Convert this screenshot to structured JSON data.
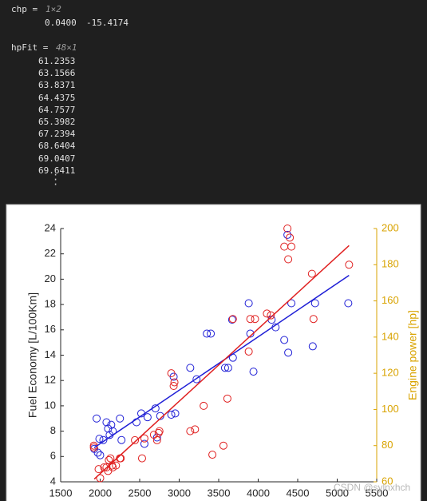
{
  "console": {
    "blocks": [
      {
        "label": "chp =",
        "size": "1×2",
        "values": [
          "0.0400",
          "-15.4174"
        ]
      },
      {
        "label": "hpFit =",
        "size": "48×1",
        "values": [
          "61.2353",
          "63.1566",
          "63.8371",
          "64.4375",
          "64.7577",
          "65.3982",
          "67.2394",
          "68.6404",
          "69.0407",
          "69.6411"
        ]
      }
    ]
  },
  "chart_data": {
    "type": "scatter",
    "ylabel": "Fuel Economy [L/100Km]",
    "y2label": "Engine power [hp]",
    "xlim": [
      1500,
      5500
    ],
    "xticks": [
      1500,
      2000,
      2500,
      3000,
      3500,
      4000,
      4500,
      5000,
      5500
    ],
    "ylim": [
      4,
      24
    ],
    "yticks": [
      4,
      6,
      8,
      10,
      12,
      14,
      16,
      18,
      20,
      22,
      24
    ],
    "y2lim": [
      60,
      200
    ],
    "y2ticks": [
      60,
      80,
      100,
      120,
      140,
      160,
      180,
      200
    ],
    "y2color": "#d9a300",
    "series": [
      {
        "color": "#1f1fd6",
        "marker": "circle",
        "x": [
          1955,
          1925,
          1970,
          1990,
          2000,
          2040,
          2080,
          2100,
          2120,
          2140,
          2160,
          2250,
          2270,
          2460,
          2520,
          2560,
          2600,
          2700,
          2720,
          2760,
          2900,
          2930,
          2950,
          3140,
          3220,
          3350,
          3400,
          3580,
          3620,
          3670,
          3680,
          3880,
          3900,
          3940,
          4170,
          4220,
          4330,
          4370,
          4380,
          4420,
          4690,
          4720,
          5140
        ],
        "values": [
          9.0,
          6.6,
          6.3,
          7.4,
          6.1,
          7.3,
          8.7,
          8.2,
          7.7,
          8.5,
          8.0,
          9.0,
          7.3,
          8.7,
          9.4,
          7.0,
          9.1,
          9.8,
          7.5,
          9.2,
          9.3,
          12.3,
          9.4,
          13.0,
          12.1,
          15.7,
          15.7,
          13.0,
          13.0,
          16.8,
          13.8,
          18.1,
          15.7,
          12.7,
          16.8,
          16.2,
          15.2,
          23.5,
          14.2,
          18.1,
          14.7,
          18.1,
          18.1
        ]
      },
      {
        "color": "#e02020",
        "marker": "circle",
        "axis": "y2",
        "x": [
          1920,
          1920,
          1980,
          2000,
          2050,
          2080,
          2100,
          2110,
          2130,
          2150,
          2160,
          2200,
          2250,
          2260,
          2440,
          2530,
          2560,
          2680,
          2720,
          2740,
          2750,
          2900,
          2930,
          2940,
          3140,
          3200,
          3310,
          3420,
          3560,
          3610,
          3680,
          3880,
          3900,
          3960,
          4110,
          4160,
          4330,
          4370,
          4380,
          4400,
          4420,
          4680,
          4700,
          5150
        ],
        "values": [
          80,
          79,
          67,
          62,
          68,
          68,
          66,
          72,
          73,
          69,
          68,
          69,
          73,
          73,
          83,
          73,
          84,
          86,
          83,
          87,
          88,
          120,
          113,
          115,
          88,
          89,
          102,
          75,
          80,
          106,
          150,
          132,
          150,
          150,
          153,
          152,
          190,
          200,
          183,
          195,
          190,
          175,
          150,
          180
        ]
      },
      {
        "color": "#1f1fd6",
        "mode": "line",
        "x": [
          1925,
          5150
        ],
        "values": [
          6.7,
          20.3
        ]
      },
      {
        "color": "#e02020",
        "mode": "line",
        "axis": "y2",
        "x": [
          1925,
          5150
        ],
        "values": [
          61.5,
          190.6
        ]
      }
    ],
    "watermark": "CSDN @sylnxhch"
  }
}
